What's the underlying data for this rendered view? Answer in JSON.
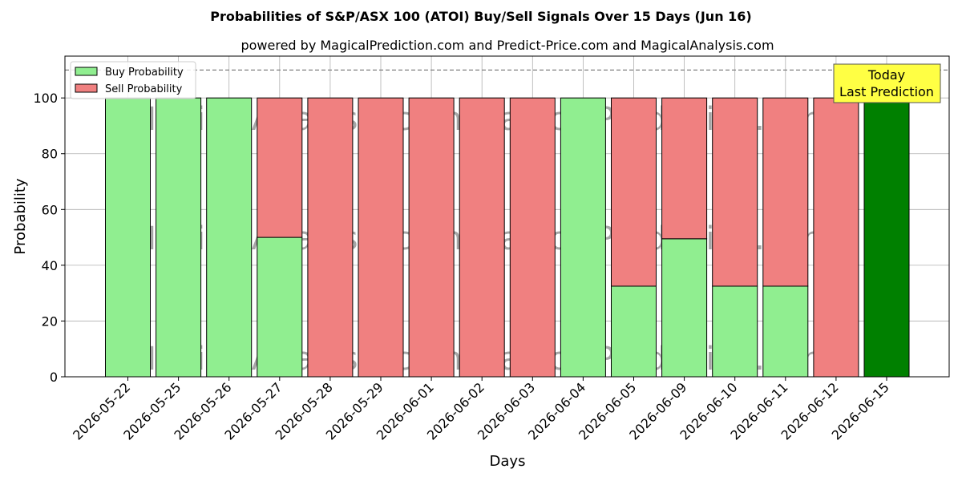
{
  "chart_data": {
    "type": "bar",
    "title": "Probabilities of S&P/ASX 100 (ATOI) Buy/Sell Signals Over 15 Days (Jun 16)",
    "subtitle": "powered by MagicalPrediction.com and Predict-Price.com and MagicalAnalysis.com",
    "xlabel": "Days",
    "ylabel": "Probability",
    "ylim": [
      0,
      115
    ],
    "yticks": [
      0,
      20,
      40,
      60,
      80,
      100
    ],
    "stacked": true,
    "grid": true,
    "legend_position": "top-left",
    "reference_line": 110,
    "categories": [
      "2026-05-22",
      "2026-05-25",
      "2026-05-26",
      "2026-05-27",
      "2026-05-28",
      "2026-05-29",
      "2026-06-01",
      "2026-06-02",
      "2026-06-03",
      "2026-06-04",
      "2026-06-05",
      "2026-06-09",
      "2026-06-10",
      "2026-06-11",
      "2026-06-12",
      "2026-06-15"
    ],
    "series": [
      {
        "name": "Buy Probability",
        "color": "#90ee90",
        "values": [
          100,
          100,
          100,
          50,
          0,
          0,
          0,
          0,
          0,
          100,
          32.5,
          49.5,
          32.5,
          32.5,
          0,
          100
        ]
      },
      {
        "name": "Sell Probability",
        "color": "#f08080",
        "values": [
          0,
          0,
          0,
          50,
          100,
          100,
          100,
          100,
          100,
          0,
          67.5,
          50.5,
          67.5,
          67.5,
          100,
          0
        ]
      }
    ],
    "highlight": {
      "index": 15,
      "color": "#008000"
    },
    "annotation": {
      "lines": [
        "Today",
        "Last Prediction"
      ],
      "background": "#ffff44"
    },
    "watermark": "MagicalAnalysis.com     MagicalPrediction.com"
  }
}
